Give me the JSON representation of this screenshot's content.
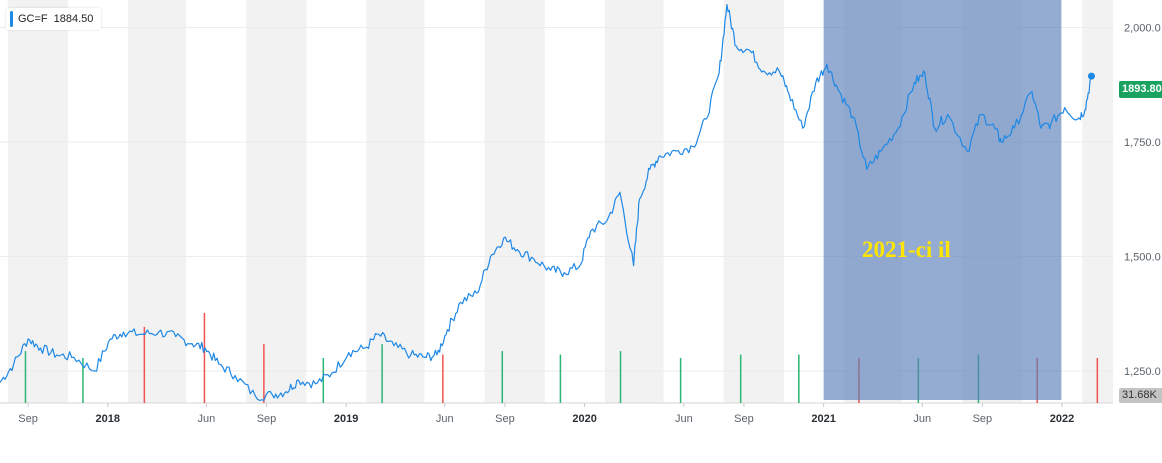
{
  "legend": {
    "symbol": "GC=F",
    "value": "1884.50"
  },
  "price_badge": "1893.80",
  "volume_badge": "31.68K",
  "annotation": "2021-ci il",
  "colors": {
    "line": "#1e88e5",
    "band": "#f2f2f2",
    "highlight": "#5b7fb8",
    "price_badge": "#1aa260",
    "volume_badge": "#c4c4c4",
    "volume_up": "#2bb673",
    "volume_down": "#ef5350",
    "annotation": "#ffe600",
    "grid": "#ececec"
  },
  "chart_data": {
    "type": "line",
    "title": "",
    "xlabel": "",
    "ylabel": "",
    "ylim": [
      1180,
      2060
    ],
    "xlim": [
      "2017-07-20",
      "2022-03-20"
    ],
    "y_ticks": [
      1250,
      1500,
      1750,
      2000
    ],
    "y_tick_labels": [
      "1,250.0",
      "1,500.0",
      "1,750.0",
      "2,000.0"
    ],
    "x_ticks": [
      {
        "date": "2017-09-01",
        "label": "Sep",
        "year": false
      },
      {
        "date": "2018-01-01",
        "label": "2018",
        "year": true
      },
      {
        "date": "2018-06-01",
        "label": "Jun",
        "year": false
      },
      {
        "date": "2018-09-01",
        "label": "Sep",
        "year": false
      },
      {
        "date": "2019-01-01",
        "label": "2019",
        "year": true
      },
      {
        "date": "2019-06-01",
        "label": "Jun",
        "year": false
      },
      {
        "date": "2019-09-01",
        "label": "Sep",
        "year": false
      },
      {
        "date": "2020-01-01",
        "label": "2020",
        "year": true
      },
      {
        "date": "2020-06-01",
        "label": "Jun",
        "year": false
      },
      {
        "date": "2020-09-01",
        "label": "Sep",
        "year": false
      },
      {
        "date": "2021-01-01",
        "label": "2021",
        "year": true
      },
      {
        "date": "2021-06-01",
        "label": "Jun",
        "year": false
      },
      {
        "date": "2021-09-01",
        "label": "Sep",
        "year": false
      },
      {
        "date": "2022-01-01",
        "label": "2022",
        "year": true
      }
    ],
    "shaded_bands": [
      [
        "2017-08-01",
        "2017-11-01"
      ],
      [
        "2018-02-01",
        "2018-05-01"
      ],
      [
        "2018-08-01",
        "2018-11-01"
      ],
      [
        "2019-02-01",
        "2019-05-01"
      ],
      [
        "2019-08-01",
        "2019-11-01"
      ],
      [
        "2020-02-01",
        "2020-05-01"
      ],
      [
        "2020-08-01",
        "2020-11-01"
      ],
      [
        "2021-02-01",
        "2021-05-01"
      ],
      [
        "2021-08-01",
        "2021-11-01"
      ],
      [
        "2022-02-01",
        "2022-03-20"
      ]
    ],
    "highlight_range": [
      "2021-01-01",
      "2021-12-31"
    ],
    "last_point": {
      "date": "2022-02-15",
      "value": 1893.8
    },
    "series": [
      {
        "x": [
          "2017-07-20",
          "2017-08-10",
          "2017-09-01",
          "2017-09-20",
          "2017-10-15",
          "2017-11-10",
          "2017-12-12",
          "2018-01-05",
          "2018-01-25",
          "2018-02-20",
          "2018-03-20",
          "2018-04-15",
          "2018-05-10",
          "2018-05-30",
          "2018-06-20",
          "2018-07-15",
          "2018-08-15",
          "2018-09-10",
          "2018-10-01",
          "2018-10-20",
          "2018-11-15",
          "2018-12-10",
          "2019-01-05",
          "2019-01-30",
          "2019-02-20",
          "2019-03-15",
          "2019-04-10",
          "2019-05-01",
          "2019-05-20",
          "2019-06-05",
          "2019-06-25",
          "2019-07-20",
          "2019-08-10",
          "2019-08-30",
          "2019-09-20",
          "2019-10-15",
          "2019-11-10",
          "2019-12-01",
          "2019-12-25",
          "2020-01-10",
          "2020-02-05",
          "2020-02-24",
          "2020-03-16",
          "2020-03-25",
          "2020-04-10",
          "2020-04-25",
          "2020-05-20",
          "2020-06-15",
          "2020-07-05",
          "2020-07-25",
          "2020-08-06",
          "2020-08-20",
          "2020-09-10",
          "2020-10-01",
          "2020-10-25",
          "2020-11-09",
          "2020-11-30",
          "2020-12-20",
          "2021-01-06",
          "2021-01-25",
          "2021-02-15",
          "2021-03-08",
          "2021-03-30",
          "2021-04-25",
          "2021-05-20",
          "2021-06-05",
          "2021-06-20",
          "2021-07-10",
          "2021-08-09",
          "2021-08-30",
          "2021-09-20",
          "2021-09-30",
          "2021-10-20",
          "2021-11-16",
          "2021-11-30",
          "2021-12-15",
          "2022-01-05",
          "2022-01-25",
          "2022-02-05",
          "2022-02-15"
        ],
        "values": [
          1225,
          1265,
          1320,
          1300,
          1285,
          1280,
          1250,
          1320,
          1335,
          1330,
          1335,
          1325,
          1310,
          1300,
          1265,
          1240,
          1195,
          1198,
          1205,
          1230,
          1222,
          1245,
          1290,
          1300,
          1330,
          1305,
          1285,
          1280,
          1285,
          1340,
          1400,
          1420,
          1500,
          1540,
          1515,
          1495,
          1470,
          1465,
          1480,
          1555,
          1580,
          1640,
          1480,
          1625,
          1690,
          1720,
          1730,
          1740,
          1800,
          1900,
          2050,
          1960,
          1950,
          1905,
          1905,
          1855,
          1780,
          1880,
          1920,
          1860,
          1805,
          1690,
          1730,
          1780,
          1880,
          1900,
          1780,
          1810,
          1730,
          1810,
          1780,
          1750,
          1780,
          1860,
          1780,
          1790,
          1825,
          1800,
          1820,
          1893.8
        ]
      }
    ],
    "volume": {
      "x": [
        "2017-08-28",
        "2017-11-24",
        "2018-02-26",
        "2018-05-29",
        "2018-08-28",
        "2018-11-27",
        "2019-02-25",
        "2019-05-29",
        "2019-08-28",
        "2019-11-25",
        "2020-02-25",
        "2020-05-27",
        "2020-08-27",
        "2020-11-24",
        "2021-02-24",
        "2021-05-26",
        "2021-08-26",
        "2021-11-24",
        "2022-02-24"
      ],
      "values": [
        15,
        13,
        22,
        26,
        17,
        13,
        17,
        14,
        15,
        14,
        15,
        13,
        14,
        14,
        13,
        13,
        14,
        13,
        13
      ],
      "direction": [
        "up",
        "up",
        "down",
        "down",
        "down",
        "up",
        "up",
        "down",
        "up",
        "up",
        "up",
        "up",
        "up",
        "up",
        "down",
        "up",
        "up",
        "down",
        "down"
      ]
    }
  }
}
